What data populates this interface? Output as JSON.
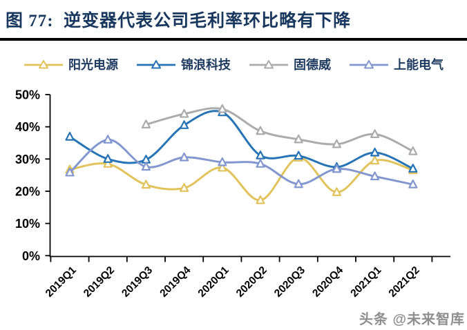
{
  "title": "图 77:  逆变器代表公司毛利率环比略有下降",
  "watermark": "头条 @未来智库",
  "colors": {
    "title_text": "#17375E",
    "legend_text": "#1E3A5F",
    "axis": "#000000",
    "divider": "#000000",
    "series_yellow": "#E2C25A",
    "series_dark_blue": "#2673B5",
    "series_gray": "#ABABAB",
    "series_light_blue": "#8297D0"
  },
  "chart_data": {
    "type": "line",
    "smooth": true,
    "marker": "open-triangle",
    "grid": false,
    "legend_position": "top",
    "title": "图 77:  逆变器代表公司毛利率环比略有下降",
    "xlabel": "",
    "ylabel": "",
    "ylim": [
      0,
      50
    ],
    "ytick_labels": [
      "0%",
      "10%",
      "20%",
      "30%",
      "40%",
      "50%"
    ],
    "categories": [
      "2019Q1",
      "2019Q2",
      "2019Q3",
      "2019Q4",
      "2020Q1",
      "2020Q2",
      "2020Q3",
      "2020Q4",
      "2021Q1",
      "2021Q2"
    ],
    "series": [
      {
        "name": "阳光电源",
        "color": "#E2C25A",
        "values": [
          26.7,
          28.5,
          22.0,
          21.0,
          27.3,
          17.2,
          30.4,
          19.7,
          29.5,
          26.5
        ]
      },
      {
        "name": "锦浪科技",
        "color": "#2673B5",
        "values": [
          36.9,
          30.0,
          29.8,
          40.5,
          44.5,
          31.1,
          31.0,
          27.5,
          32.0,
          27.0
        ]
      },
      {
        "name": "固德威",
        "color": "#ABABAB",
        "values": [
          null,
          null,
          40.7,
          44.0,
          45.5,
          38.7,
          36.1,
          34.6,
          37.7,
          32.4
        ]
      },
      {
        "name": "上能电气",
        "color": "#8297D0",
        "values": [
          25.8,
          36.0,
          27.6,
          30.5,
          29.0,
          28.5,
          22.2,
          26.9,
          24.6,
          22.1
        ]
      }
    ]
  }
}
